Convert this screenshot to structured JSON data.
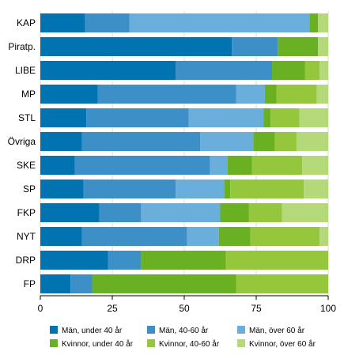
{
  "chart_data": {
    "type": "bar",
    "orientation": "horizontal",
    "stacked": true,
    "categories": [
      "KAP",
      "Piratp.",
      "LIBE",
      "MP",
      "STL",
      "Övriga",
      "SKE",
      "SP",
      "FKP",
      "NYT",
      "DRP",
      "FP"
    ],
    "series": [
      {
        "name": "Män, under 40 år",
        "color": "#0073b0",
        "values": [
          15.5,
          66.5,
          47.0,
          20.0,
          16.0,
          14.5,
          12.0,
          15.0,
          20.5,
          14.5,
          23.5,
          10.5
        ]
      },
      {
        "name": "Män, 40-60 år",
        "color": "#3d90c7",
        "values": [
          15.5,
          16.0,
          33.5,
          48.0,
          35.5,
          41.0,
          47.0,
          32.0,
          14.5,
          36.5,
          11.5,
          7.5
        ]
      },
      {
        "name": "Män, över 60 år",
        "color": "#6aaedb",
        "values": [
          62.5,
          0,
          0,
          10.0,
          26.0,
          18.5,
          6.0,
          17.0,
          27.5,
          11.0,
          0,
          0
        ]
      },
      {
        "name": "Kvinnor, under 40 år",
        "color": "#6ab023",
        "values": [
          3.0,
          14.0,
          11.5,
          4.0,
          2.5,
          7.5,
          8.5,
          2.0,
          10.0,
          11.0,
          29.5,
          50.0
        ]
      },
      {
        "name": "Kvinnor, 40-60 år",
        "color": "#95c73d",
        "values": [
          0,
          0,
          5.0,
          14.0,
          10.0,
          7.5,
          17.5,
          25.5,
          11.5,
          24.0,
          35.5,
          32.0
        ]
      },
      {
        "name": "Kvinnor, över 60 år",
        "color": "#b5d979",
        "values": [
          3.5,
          3.5,
          3.0,
          4.0,
          10.0,
          11.0,
          9.0,
          8.5,
          16.0,
          3.0,
          0,
          0
        ]
      }
    ],
    "xlim": [
      0,
      100
    ],
    "xticks": [
      "0",
      "25",
      "50",
      "75",
      "100"
    ],
    "grid": "vertical",
    "legend_position": "bottom"
  }
}
